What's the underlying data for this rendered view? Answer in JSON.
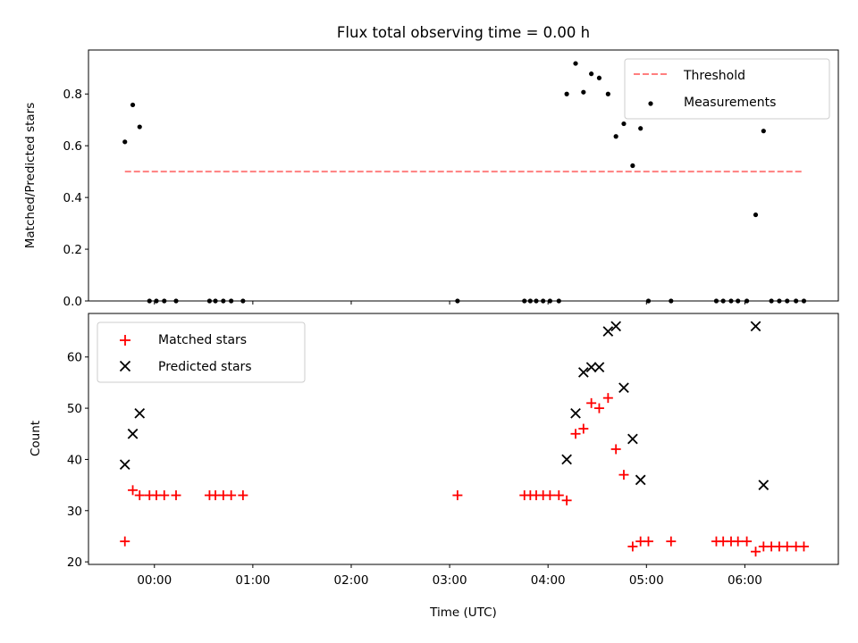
{
  "chart_data": [
    {
      "type": "scatter",
      "title": "Flux total observing time = 0.00 h",
      "xlabel": "",
      "ylabel": "Matched/Predicted stars",
      "xlim_hours": [
        -0.67,
        6.95
      ],
      "ylim": [
        0,
        0.97
      ],
      "yticks": [
        0.0,
        0.2,
        0.4,
        0.6,
        0.8
      ],
      "legend_position": "top-right",
      "threshold": {
        "name": "Threshold",
        "value": 0.5,
        "x_range": [
          -0.3,
          6.6
        ],
        "color": "#ff7f7f"
      },
      "series": [
        {
          "name": "Measurements",
          "marker": "dot",
          "color": "#000000",
          "x": [
            -0.3,
            -0.22,
            -0.15,
            -0.05,
            0.02,
            0.1,
            0.22,
            0.56,
            0.62,
            0.7,
            0.78,
            0.9,
            3.08,
            3.76,
            3.82,
            3.88,
            3.95,
            4.02,
            4.11,
            4.19,
            4.28,
            4.36,
            4.44,
            4.52,
            4.61,
            4.69,
            4.77,
            4.86,
            4.94,
            5.02,
            5.25,
            5.71,
            5.78,
            5.86,
            5.93,
            6.02,
            6.11,
            6.19,
            6.27,
            6.35,
            6.43,
            6.52,
            6.6
          ],
          "y": [
            0.615,
            0.758,
            0.673,
            0.0,
            0.0,
            0.0,
            0.0,
            0.0,
            0.0,
            0.0,
            0.0,
            0.0,
            0.0,
            0.0,
            0.0,
            0.0,
            0.0,
            0.0,
            0.0,
            0.8,
            0.918,
            0.807,
            0.878,
            0.862,
            0.8,
            0.636,
            0.685,
            0.523,
            0.667,
            0.0,
            0.0,
            0.0,
            0.0,
            0.0,
            0.0,
            0.0,
            0.333,
            0.657,
            0.0,
            0.0,
            0.0,
            0.0,
            0.0
          ]
        }
      ]
    },
    {
      "type": "scatter",
      "title": "",
      "xlabel": "Time (UTC)",
      "ylabel": "Count",
      "xlim_hours": [
        -0.67,
        6.95
      ],
      "ylim": [
        19.5,
        68.5
      ],
      "yticks": [
        20,
        30,
        40,
        50,
        60
      ],
      "xtick_hours": [
        0,
        1,
        2,
        3,
        4,
        5,
        6
      ],
      "xtick_labels": [
        "00:00",
        "01:00",
        "02:00",
        "03:00",
        "04:00",
        "05:00",
        "06:00"
      ],
      "legend_position": "top-left",
      "series": [
        {
          "name": "Matched stars",
          "marker": "plus",
          "color": "#ff0000",
          "x": [
            -0.3,
            -0.22,
            -0.15,
            -0.05,
            0.02,
            0.1,
            0.22,
            0.56,
            0.62,
            0.7,
            0.78,
            0.9,
            3.08,
            3.76,
            3.82,
            3.88,
            3.95,
            4.02,
            4.11,
            4.19,
            4.28,
            4.36,
            4.44,
            4.52,
            4.61,
            4.69,
            4.77,
            4.86,
            4.94,
            5.02,
            5.25,
            5.71,
            5.78,
            5.86,
            5.93,
            6.02,
            6.11,
            6.19,
            6.27,
            6.35,
            6.43,
            6.52,
            6.6
          ],
          "y": [
            24,
            34,
            33,
            33,
            33,
            33,
            33,
            33,
            33,
            33,
            33,
            33,
            33,
            33,
            33,
            33,
            33,
            33,
            33,
            32,
            45,
            46,
            51,
            50,
            52,
            42,
            37,
            23,
            24,
            24,
            24,
            24,
            24,
            24,
            24,
            24,
            22,
            23,
            23,
            23,
            23,
            23,
            23
          ]
        },
        {
          "name": "Predicted stars",
          "marker": "x",
          "color": "#000000",
          "x": [
            -0.3,
            -0.22,
            -0.15,
            4.19,
            4.28,
            4.36,
            4.44,
            4.52,
            4.61,
            4.69,
            4.77,
            4.86,
            4.94,
            6.11,
            6.19
          ],
          "y": [
            39,
            45,
            49,
            40,
            49,
            57,
            58,
            58,
            65,
            66,
            54,
            44,
            36,
            66,
            35
          ]
        }
      ]
    }
  ]
}
